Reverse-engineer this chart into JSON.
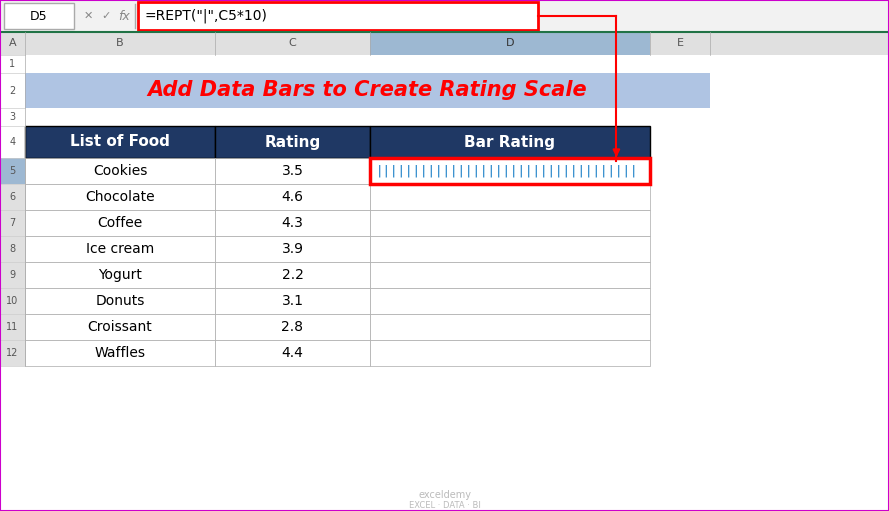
{
  "title": "Add Data Bars to Create Rating Scale",
  "title_color": "#FF0000",
  "title_bg_color": "#AFC4E3",
  "title_fontsize": 15,
  "header_bg_color": "#1F3864",
  "header_text_color": "#FFFFFF",
  "foods": [
    "Cookies",
    "Chocolate",
    "Coffee",
    "Ice cream",
    "Yogurt",
    "Donuts",
    "Croissant",
    "Waffles"
  ],
  "ratings": [
    3.5,
    4.6,
    4.3,
    3.9,
    2.2,
    3.1,
    2.8,
    4.4
  ],
  "bar_color": "#0070C0",
  "formula_text": "=REPT(\"|\",C5*10)",
  "formula_box_color": "#FF0000",
  "arrow_color": "#FF0000",
  "col_headers": [
    "List of Food",
    "Rating",
    "Bar Rating"
  ],
  "excel_bg": "#FFFFFF",
  "cell_border_color": "#D0D0D0",
  "table_border_color": "#333333",
  "col_header_bg": "#E0E0E0",
  "col_header_selected_bg": "#9DB8D2",
  "row_num_selected_bg": "#9DB8D2",
  "formula_bar_bg": "#F2F2F2",
  "name_box_bg": "#FFFFFF"
}
